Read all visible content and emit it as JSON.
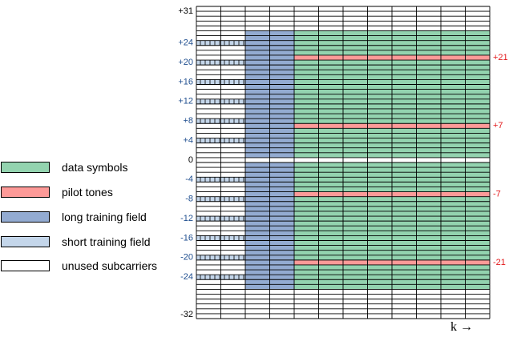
{
  "colors": {
    "data": "#93d3af",
    "pilot": "#fd9a98",
    "ltf": "#93abd1",
    "stf": "#c4d6ea",
    "unused": "#ffffff",
    "left_label": "#1f4e8f",
    "right_label": "#e31a1c",
    "line": "#000000"
  },
  "legend": [
    {
      "label": "data symbols",
      "color_key": "data"
    },
    {
      "label": "pilot tones",
      "color_key": "pilot"
    },
    {
      "label": "long training field",
      "color_key": "ltf"
    },
    {
      "label": "short training field",
      "color_key": "stf"
    },
    {
      "label": "unused subcarriers",
      "color_key": "unused"
    }
  ],
  "grid": {
    "subcarrier_max": 31,
    "subcarrier_min": -32,
    "stf_columns": 2,
    "ltf_columns": 2,
    "data_columns": 8,
    "stf_subcarriers": [
      24,
      20,
      16,
      12,
      8,
      4,
      -4,
      -8,
      -12,
      -16,
      -20,
      -24
    ],
    "occupied_min": -26,
    "occupied_max": 26,
    "pilot_subcarriers": [
      21,
      7,
      -7,
      -21
    ],
    "top_label": "+31",
    "bottom_label": "-32",
    "left_labels": [
      "+24",
      "+20",
      "+16",
      "+12",
      "+8",
      "+4",
      "0",
      "-4",
      "-8",
      "-12",
      "-16",
      "-20",
      "-24"
    ],
    "right_labels": [
      "+21",
      "+7",
      "-7",
      "-21"
    ]
  },
  "axis": {
    "k_label": "k →"
  }
}
